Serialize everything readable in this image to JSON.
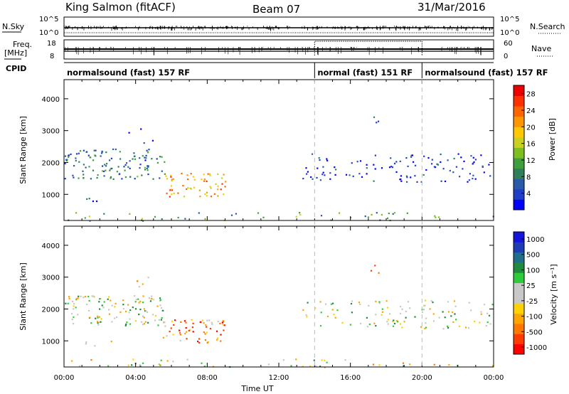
{
  "header": {
    "station": "King Salmon (fitACF)",
    "beam": "Beam 07",
    "date": "31/Mar/2016"
  },
  "labels": {
    "nsky": "N.Sky",
    "nsearch": "N.Search",
    "freq_line1": "Freq.",
    "freq_line2": "[MHz]",
    "nave": "Nave",
    "cpid": "CPID"
  },
  "counts_axis": {
    "top": "10^5",
    "bottom": "10^0"
  },
  "freq_axis": {
    "ticks": [
      18,
      8
    ]
  },
  "nave_axis": {
    "ticks": [
      60,
      0
    ]
  },
  "cpid_segments": [
    {
      "label": "normalsound (fast) 157 RF",
      "start_h": 0.0,
      "end_h": 14.0
    },
    {
      "label": "normal (fast) 151 RF",
      "start_h": 14.0,
      "end_h": 20.0
    },
    {
      "label": "normalsound (fast) 157 RF",
      "start_h": 20.0,
      "end_h": 24.0
    }
  ],
  "chart_data": [
    {
      "type": "heatmap",
      "name": "power",
      "ylabel": "Slant Range [km]",
      "ylim": [
        180,
        4600
      ],
      "yticks": [
        1000,
        2000,
        3000,
        4000
      ],
      "xlim": [
        0,
        24
      ],
      "colorbar": {
        "label": "Power [dB]",
        "ticks": [
          "28",
          "24",
          "20",
          "16",
          "12",
          "8",
          "4"
        ],
        "range": [
          0,
          30
        ],
        "colors": [
          "#0000ff",
          "#1f3fc8",
          "#2a5aa8",
          "#2f7f5a",
          "#3f9f3f",
          "#7cbf1f",
          "#c8d21e",
          "#ffc800",
          "#ff9600",
          "#ff6400",
          "#ff3000",
          "#ee0000"
        ]
      },
      "regions": [
        {
          "t0": 0.0,
          "t1": 5.6,
          "r0": 1500,
          "r1": 2450,
          "level": 0.25,
          "density": 0.9
        },
        {
          "t0": 3.3,
          "t1": 5.0,
          "r0": 2500,
          "r1": 3100,
          "level": 0.12,
          "density": 0.15
        },
        {
          "t0": 1.0,
          "t1": 2.8,
          "r0": 780,
          "r1": 1030,
          "level": 0.15,
          "density": 0.35
        },
        {
          "t0": 5.5,
          "t1": 9.0,
          "r0": 950,
          "r1": 1700,
          "level": 0.7,
          "density": 0.9
        },
        {
          "t0": 13.3,
          "t1": 24.0,
          "r0": 1400,
          "r1": 2300,
          "level": 0.12,
          "density": 0.45
        },
        {
          "t0": 17.1,
          "t1": 17.6,
          "r0": 3100,
          "r1": 3550,
          "level": 0.15,
          "density": 0.6
        },
        {
          "t0": 0.0,
          "t1": 24.0,
          "r0": 190,
          "r1": 450,
          "level": 0.35,
          "density": 0.28
        }
      ]
    },
    {
      "type": "heatmap",
      "name": "velocity",
      "ylabel": "Slant Range [km]",
      "ylim": [
        180,
        4600
      ],
      "yticks": [
        1000,
        2000,
        3000,
        4000
      ],
      "xlim": [
        0,
        24
      ],
      "xlabel": "Time UT",
      "xticks": [
        "00:00",
        "04:00",
        "08:00",
        "12:00",
        "16:00",
        "20:00",
        "00:00"
      ],
      "colorbar": {
        "label": "Velocity [m s⁻¹]",
        "ticks": [
          "1000",
          "500",
          "100",
          "25",
          "-25",
          "-100",
          "-500",
          "-1000"
        ],
        "colors": [
          "#ff0000",
          "#ff3c00",
          "#ff7800",
          "#ffa500",
          "#ffd200",
          "#c8c8c8",
          "#c8c8c8",
          "#2ecc3a",
          "#1e8c3c",
          "#1e6e8c",
          "#1e3cb4",
          "#1414dc"
        ]
      },
      "regions": [
        {
          "t0": 0.0,
          "t1": 5.6,
          "r0": 1500,
          "r1": 2450,
          "level": 0.5,
          "density": 0.9
        },
        {
          "t0": 3.3,
          "t1": 5.0,
          "r0": 2500,
          "r1": 3100,
          "level": 0.4,
          "density": 0.15
        },
        {
          "t0": 1.0,
          "t1": 2.8,
          "r0": 780,
          "r1": 1030,
          "level": 0.5,
          "density": 0.35
        },
        {
          "t0": 5.5,
          "t1": 9.0,
          "r0": 950,
          "r1": 1700,
          "level": 0.22,
          "density": 0.92
        },
        {
          "t0": 13.3,
          "t1": 24.0,
          "r0": 1400,
          "r1": 2300,
          "level": 0.5,
          "density": 0.45
        },
        {
          "t0": 17.1,
          "t1": 17.6,
          "r0": 3100,
          "r1": 3550,
          "level": 0.3,
          "density": 0.6
        },
        {
          "t0": 0.0,
          "t1": 24.0,
          "r0": 190,
          "r1": 450,
          "level": 0.45,
          "density": 0.28
        }
      ]
    }
  ]
}
